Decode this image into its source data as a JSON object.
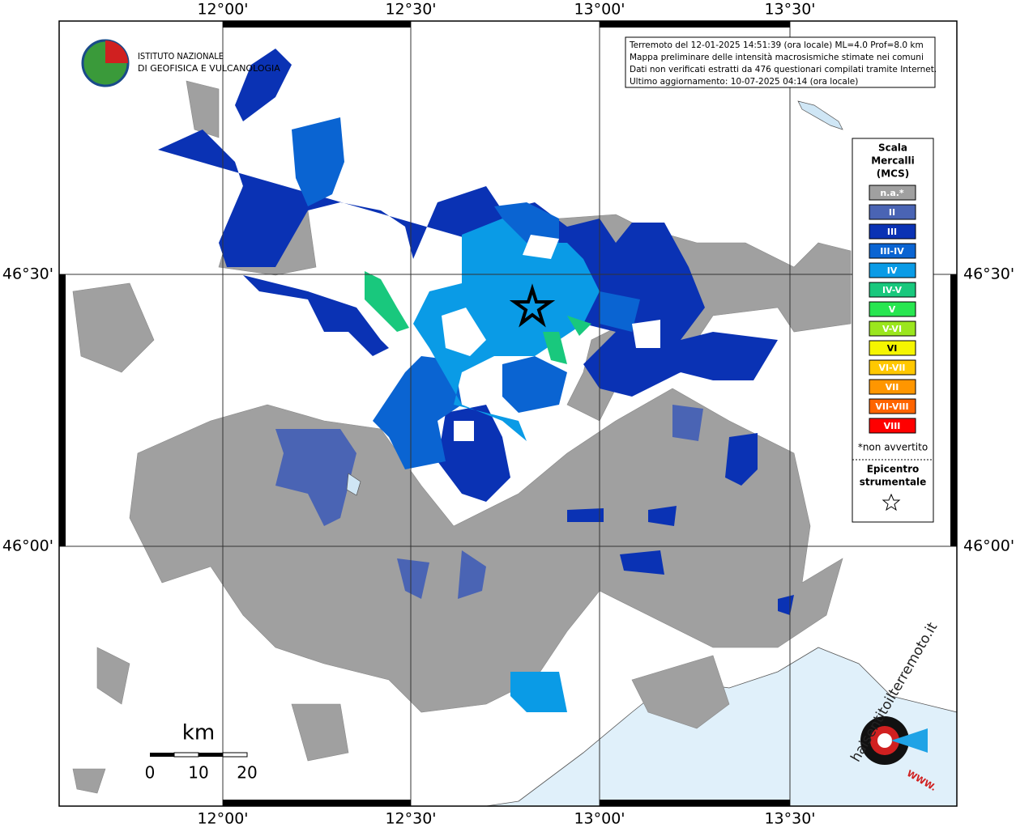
{
  "map": {
    "lon_labels": [
      "12°00'",
      "12°30'",
      "13°00'",
      "13°30'"
    ],
    "lat_labels": [
      "46°30'",
      "46°00'"
    ],
    "institute": [
      "ISTITUTO NAZIONALE",
      "DI GEOFISICA E VULCANOLOGIA"
    ],
    "info": [
      "Terremoto del 12-01-2025 14:51:39 (ora locale) ML=4.0 Prof=8.0 km",
      "Mappa preliminare delle intensità macrosismiche stimate nei comuni",
      "Dati non verificati estratti da 476 questionari compilati tramite Internet.",
      "Ultimo aggiornamento: 10-07-2025 04:14 (ora locale)"
    ],
    "legend": {
      "title": [
        "Scala",
        "Mercalli",
        "(MCS)"
      ],
      "items": [
        {
          "label": "n.a.*",
          "color": "#a0a0a0"
        },
        {
          "label": "II",
          "color": "#4a64b4"
        },
        {
          "label": "III",
          "color": "#0a32b4"
        },
        {
          "label": "III-IV",
          "color": "#0a64d2"
        },
        {
          "label": "IV",
          "color": "#0a9be6"
        },
        {
          "label": "IV-V",
          "color": "#19c87d"
        },
        {
          "label": "V",
          "color": "#28e650"
        },
        {
          "label": "V-VI",
          "color": "#9be61e"
        },
        {
          "label": "VI",
          "color": "#f5f500"
        },
        {
          "label": "VI-VII",
          "color": "#ffc800"
        },
        {
          "label": "VII",
          "color": "#ff9600"
        },
        {
          "label": "VII-VIII",
          "color": "#ff6400"
        },
        {
          "label": "VIII",
          "color": "#ff0000"
        }
      ],
      "note": "*non avvertito",
      "epicenter": [
        "Epicentro",
        "strumentale"
      ]
    },
    "scale": {
      "unit": "km",
      "labels": [
        "0",
        "10",
        "20"
      ]
    },
    "watermark": [
      "haisentitoilterremoto.it",
      "WWW."
    ]
  }
}
